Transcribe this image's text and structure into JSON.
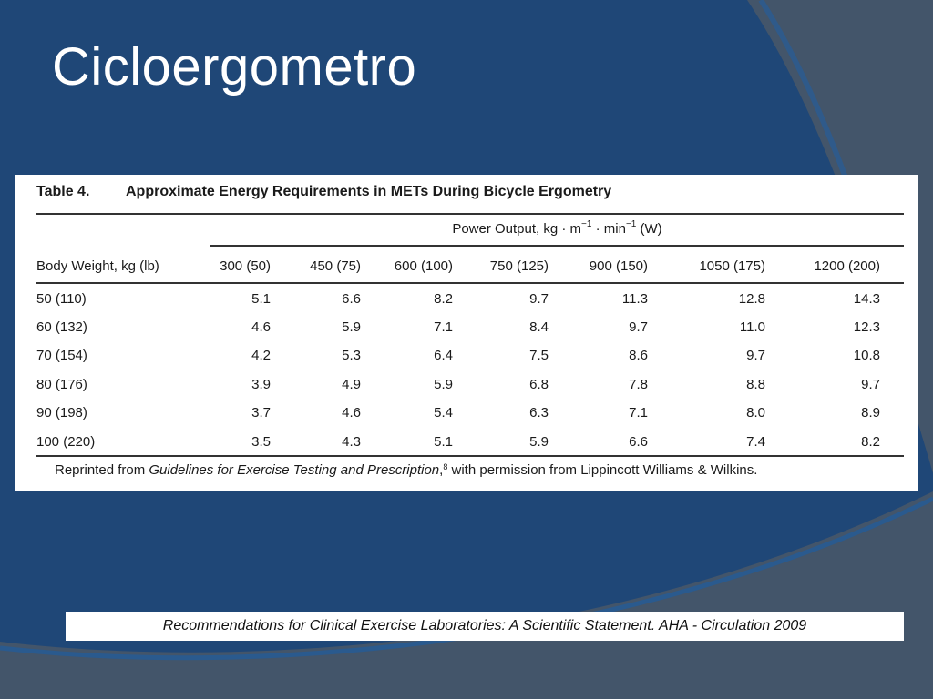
{
  "slide": {
    "title": "Cicloergometro"
  },
  "table": {
    "caption_number": "Table 4.",
    "caption_title": "Approximate Energy Requirements in METs During Bicycle Ergometry",
    "group_header": {
      "prefix": "Power Output, kg · m",
      "sup1": "−1",
      "middle": " · min",
      "sup2": "−1",
      "suffix": " (W)"
    },
    "row_header_label": "Body Weight, kg (lb)",
    "columns": [
      "300 (50)",
      "450 (75)",
      "600 (100)",
      "750 (125)",
      "900 (150)",
      "1050 (175)",
      "1200 (200)"
    ],
    "rows": [
      {
        "label": "50 (110)",
        "values": [
          "5.1",
          "6.6",
          "8.2",
          "9.7",
          "11.3",
          "12.8",
          "14.3"
        ]
      },
      {
        "label": "60 (132)",
        "values": [
          "4.6",
          "5.9",
          "7.1",
          "8.4",
          "9.7",
          "11.0",
          "12.3"
        ]
      },
      {
        "label": "70 (154)",
        "values": [
          "4.2",
          "5.3",
          "6.4",
          "7.5",
          "8.6",
          "9.7",
          "10.8"
        ]
      },
      {
        "label": "80 (176)",
        "values": [
          "3.9",
          "4.9",
          "5.9",
          "6.8",
          "7.8",
          "8.8",
          "9.7"
        ]
      },
      {
        "label": "90 (198)",
        "values": [
          "3.7",
          "4.6",
          "5.4",
          "6.3",
          "7.1",
          "8.0",
          "8.9"
        ]
      },
      {
        "label": "100 (220)",
        "values": [
          "3.5",
          "4.3",
          "5.1",
          "5.9",
          "6.6",
          "7.4",
          "8.2"
        ]
      }
    ],
    "footnote": {
      "before": "Reprinted from ",
      "source_title": "Guidelines for Exercise Testing and Prescription",
      "ref": "8",
      "after": " with permission from Lippincott Williams & Wilkins."
    }
  },
  "citation": {
    "text": "Recommendations for Clinical Exercise Laboratories: A Scientific Statement. AHA - Circulation 2009"
  },
  "colors": {
    "background": "#1f4777",
    "accent_gray": "#43556a"
  }
}
